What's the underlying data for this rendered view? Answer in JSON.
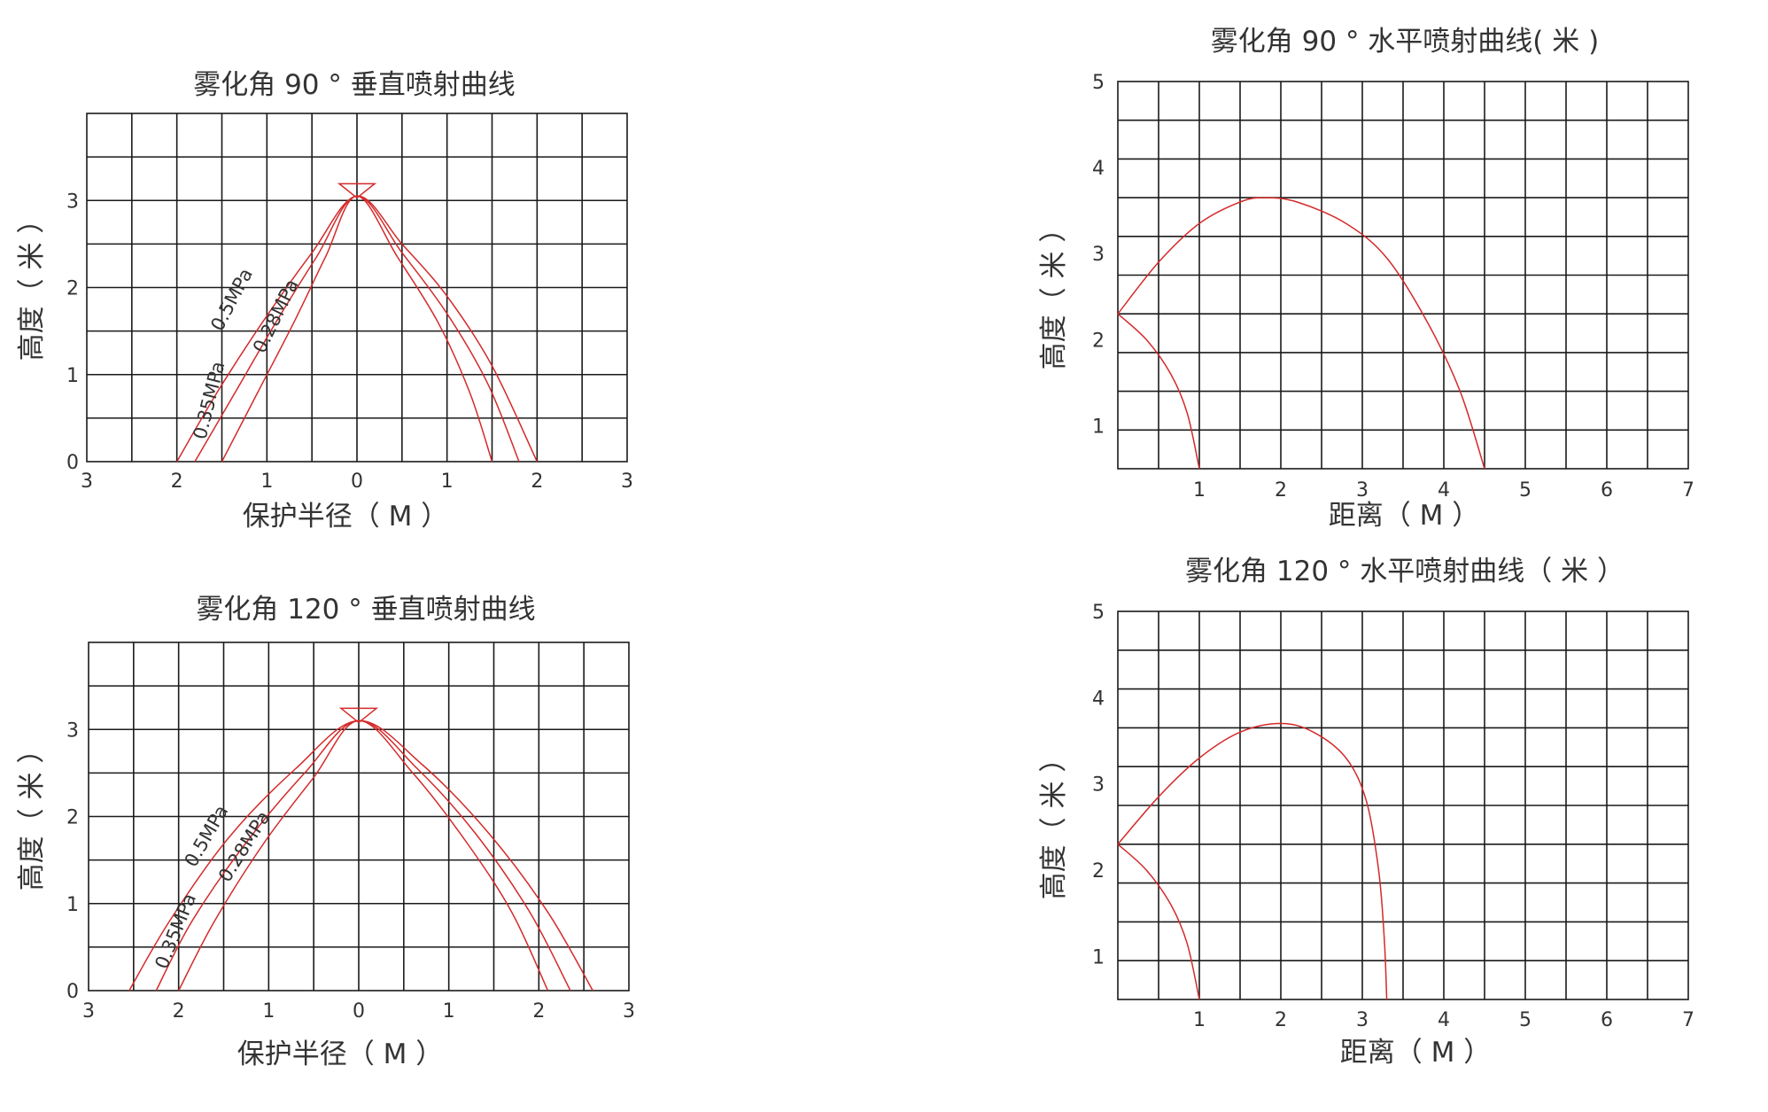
{
  "colors": {
    "curve": "#d42a2a",
    "grid": "#1a1a1a",
    "text": "#333333"
  },
  "chart_data": [
    {
      "id": "v90",
      "type": "line",
      "title": "雾化角 90 ° 垂直喷射曲线",
      "xlabel": "保护半径（ M ）",
      "ylabel": "高度（ 米 ）",
      "x_ticks": [
        "3",
        "2",
        "1",
        "0",
        "1",
        "2",
        "3"
      ],
      "y_ticks": [
        "0",
        "1",
        "2",
        "3"
      ],
      "xlim": [
        -3,
        3
      ],
      "ylim": [
        0,
        4
      ],
      "grid": true,
      "nozzle": {
        "x": 0,
        "y": 3.05
      },
      "series": [
        {
          "name": "0.5MPa",
          "points": [
            [
              -2.0,
              0
            ],
            [
              -1.55,
              0.8
            ],
            [
              -1.05,
              1.6
            ],
            [
              -0.5,
              2.4
            ],
            [
              0,
              3.05
            ],
            [
              0.5,
              2.5
            ],
            [
              1.0,
              1.9
            ],
            [
              1.5,
              1.1
            ],
            [
              2.0,
              0
            ]
          ]
        },
        {
          "name": "0.35MPa",
          "points": [
            [
              -1.8,
              0
            ],
            [
              -1.35,
              0.8
            ],
            [
              -0.9,
              1.6
            ],
            [
              -0.45,
              2.35
            ],
            [
              0,
              3.05
            ],
            [
              0.5,
              2.4
            ],
            [
              1.0,
              1.7
            ],
            [
              1.45,
              0.9
            ],
            [
              1.8,
              0
            ]
          ]
        },
        {
          "name": "0.28MPa",
          "points": [
            [
              -1.5,
              0
            ],
            [
              -1.1,
              0.8
            ],
            [
              -0.7,
              1.6
            ],
            [
              -0.35,
              2.35
            ],
            [
              0,
              3.05
            ],
            [
              0.45,
              2.35
            ],
            [
              0.9,
              1.6
            ],
            [
              1.25,
              0.8
            ],
            [
              1.5,
              0
            ]
          ]
        }
      ]
    },
    {
      "id": "v120",
      "type": "line",
      "title": "雾化角 120 ° 垂直喷射曲线",
      "xlabel": "保护半径（ M ）",
      "ylabel": "高度（ 米 ）",
      "x_ticks": [
        "3",
        "2",
        "1",
        "0",
        "1",
        "2",
        "3"
      ],
      "y_ticks": [
        "0",
        "1",
        "2",
        "3"
      ],
      "xlim": [
        -3,
        3
      ],
      "ylim": [
        0,
        4
      ],
      "grid": true,
      "nozzle": {
        "x": 0,
        "y": 3.1
      },
      "series": [
        {
          "name": "0.5MPa",
          "points": [
            [
              -2.55,
              0
            ],
            [
              -2.1,
              0.8
            ],
            [
              -1.45,
              1.75
            ],
            [
              -0.7,
              2.55
            ],
            [
              0,
              3.1
            ],
            [
              0.7,
              2.6
            ],
            [
              1.45,
              1.8
            ],
            [
              2.1,
              0.9
            ],
            [
              2.6,
              0
            ]
          ]
        },
        {
          "name": "0.35MPa",
          "points": [
            [
              -2.25,
              0
            ],
            [
              -1.85,
              0.8
            ],
            [
              -1.25,
              1.7
            ],
            [
              -0.6,
              2.5
            ],
            [
              0,
              3.1
            ],
            [
              0.65,
              2.55
            ],
            [
              1.3,
              1.8
            ],
            [
              1.9,
              0.9
            ],
            [
              2.35,
              0
            ]
          ]
        },
        {
          "name": "0.28MPa",
          "points": [
            [
              -2.0,
              0
            ],
            [
              -1.6,
              0.8
            ],
            [
              -1.05,
              1.7
            ],
            [
              -0.5,
              2.45
            ],
            [
              0,
              3.1
            ],
            [
              0.6,
              2.5
            ],
            [
              1.2,
              1.7
            ],
            [
              1.7,
              0.9
            ],
            [
              2.1,
              0
            ]
          ]
        }
      ]
    },
    {
      "id": "h90",
      "type": "line",
      "title": "雾化角 90 ° 水平喷射曲线( 米 )",
      "xlabel": "距离（ M ）",
      "ylabel": "高度（ 米 ）",
      "x_ticks": [
        "1",
        "2",
        "3",
        "4",
        "5",
        "6",
        "7"
      ],
      "y_ticks": [
        "1",
        "2",
        "3",
        "4",
        "5"
      ],
      "xlim": [
        0,
        7
      ],
      "ylim": [
        0.5,
        5
      ],
      "grid": true,
      "series": [
        {
          "points": [
            [
              0,
              2.3
            ],
            [
              0.5,
              2.9
            ],
            [
              1.0,
              3.35
            ],
            [
              1.5,
              3.6
            ],
            [
              1.8,
              3.65
            ],
            [
              2.2,
              3.6
            ],
            [
              2.8,
              3.35
            ],
            [
              3.3,
              2.95
            ],
            [
              3.8,
              2.2
            ],
            [
              4.2,
              1.4
            ],
            [
              4.5,
              0.5
            ]
          ]
        },
        {
          "points": [
            [
              0,
              2.3
            ],
            [
              0.35,
              2.0
            ],
            [
              0.65,
              1.6
            ],
            [
              0.85,
              1.15
            ],
            [
              1.0,
              0.5
            ]
          ]
        }
      ]
    },
    {
      "id": "h120",
      "type": "line",
      "title": "雾化角 120 ° 水平喷射曲线（ 米 ）",
      "xlabel": "距离（ M ）",
      "ylabel": "高度（ 米 ）",
      "x_ticks": [
        "1",
        "2",
        "3",
        "4",
        "5",
        "6",
        "7"
      ],
      "y_ticks": [
        "1",
        "2",
        "3",
        "4",
        "5"
      ],
      "xlim": [
        0,
        7
      ],
      "ylim": [
        0.5,
        5
      ],
      "grid": true,
      "series": [
        {
          "points": [
            [
              0,
              2.3
            ],
            [
              0.5,
              2.85
            ],
            [
              1.0,
              3.3
            ],
            [
              1.5,
              3.6
            ],
            [
              2.0,
              3.7
            ],
            [
              2.4,
              3.6
            ],
            [
              2.8,
              3.3
            ],
            [
              3.05,
              2.8
            ],
            [
              3.2,
              2.0
            ],
            [
              3.27,
              1.2
            ],
            [
              3.3,
              0.5
            ]
          ]
        },
        {
          "points": [
            [
              0,
              2.3
            ],
            [
              0.35,
              2.0
            ],
            [
              0.65,
              1.6
            ],
            [
              0.85,
              1.15
            ],
            [
              1.0,
              0.5
            ]
          ]
        }
      ]
    }
  ]
}
